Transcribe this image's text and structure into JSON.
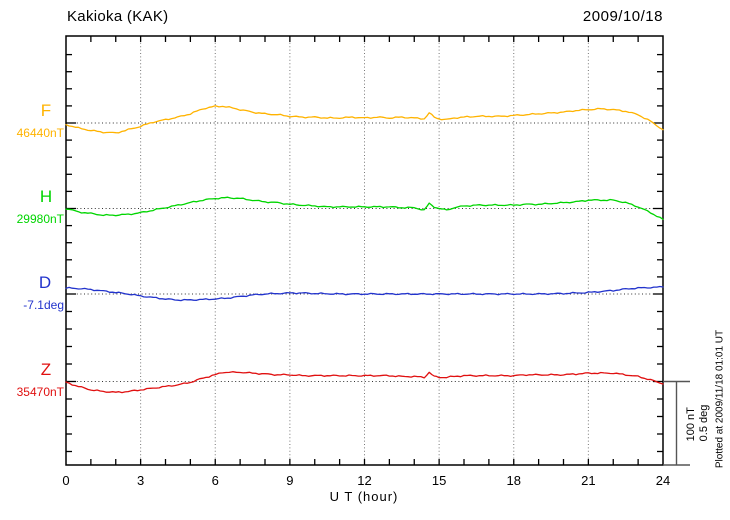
{
  "chart_data": {
    "type": "line",
    "title": "Kakioka (KAK)",
    "date": "2009/10/18",
    "xlabel": "U T (hour)",
    "x_ticks": [
      0,
      3,
      6,
      9,
      12,
      15,
      18,
      21,
      24
    ],
    "x_range": [
      0,
      24
    ],
    "grid": {
      "vertical_dotted_every_hours": 3,
      "horizontal_dotted_baseline_per_series": true
    },
    "scale_bar": {
      "line1": "100 nT",
      "line2": "0.5 deg"
    },
    "plotted_at": "Plotted at 2009/11/18 01:01 UT",
    "series": [
      {
        "name": "F",
        "base_value_label": "46440nT",
        "unit": "nT",
        "color": "#FFB300",
        "points": [
          [
            0,
            -2
          ],
          [
            0.5,
            -6
          ],
          [
            1,
            -9
          ],
          [
            1.5,
            -11
          ],
          [
            2,
            -12
          ],
          [
            2.5,
            -8
          ],
          [
            3,
            -4
          ],
          [
            3.5,
            1
          ],
          [
            4,
            4
          ],
          [
            4.5,
            7
          ],
          [
            5,
            11
          ],
          [
            5.5,
            17
          ],
          [
            6,
            20
          ],
          [
            6.3,
            20
          ],
          [
            6.7,
            18
          ],
          [
            7,
            16
          ],
          [
            7.5,
            13
          ],
          [
            8,
            11
          ],
          [
            8.5,
            10
          ],
          [
            9,
            8
          ],
          [
            9.5,
            7
          ],
          [
            10,
            7
          ],
          [
            10.5,
            6
          ],
          [
            11,
            6
          ],
          [
            11.5,
            7
          ],
          [
            12,
            6
          ],
          [
            12.5,
            7
          ],
          [
            13,
            6
          ],
          [
            13.5,
            7
          ],
          [
            14,
            6
          ],
          [
            14.4,
            5
          ],
          [
            14.6,
            12
          ],
          [
            14.8,
            7
          ],
          [
            15,
            5
          ],
          [
            15.3,
            4
          ],
          [
            15.6,
            6
          ],
          [
            16,
            7
          ],
          [
            16.5,
            8
          ],
          [
            17,
            8
          ],
          [
            17.5,
            8
          ],
          [
            18,
            9
          ],
          [
            18.5,
            10
          ],
          [
            19,
            11
          ],
          [
            19.5,
            12
          ],
          [
            20,
            13
          ],
          [
            20.5,
            15
          ],
          [
            21,
            16
          ],
          [
            21.5,
            17
          ],
          [
            22,
            16
          ],
          [
            22.5,
            14
          ],
          [
            23,
            10
          ],
          [
            23.5,
            2
          ],
          [
            24,
            -8
          ]
        ]
      },
      {
        "name": "H",
        "base_value_label": "29980nT",
        "unit": "nT",
        "color": "#00D500",
        "points": [
          [
            0,
            0
          ],
          [
            0.5,
            -4
          ],
          [
            1,
            -6
          ],
          [
            1.5,
            -8
          ],
          [
            2,
            -8
          ],
          [
            2.5,
            -7
          ],
          [
            3,
            -5
          ],
          [
            3.5,
            -2
          ],
          [
            4,
            1
          ],
          [
            4.5,
            4
          ],
          [
            5,
            7
          ],
          [
            5.5,
            10
          ],
          [
            6,
            12
          ],
          [
            6.5,
            13
          ],
          [
            7,
            12
          ],
          [
            7.5,
            10
          ],
          [
            8,
            8
          ],
          [
            8.5,
            7
          ],
          [
            9,
            5
          ],
          [
            9.5,
            4
          ],
          [
            10,
            3
          ],
          [
            10.5,
            2
          ],
          [
            11,
            2
          ],
          [
            11.5,
            2
          ],
          [
            12,
            2
          ],
          [
            12.5,
            2
          ],
          [
            13,
            2
          ],
          [
            13.5,
            1
          ],
          [
            14,
            1
          ],
          [
            14.4,
            -2
          ],
          [
            14.6,
            6
          ],
          [
            14.8,
            2
          ],
          [
            15,
            0
          ],
          [
            15.3,
            -2
          ],
          [
            15.6,
            1
          ],
          [
            16,
            3
          ],
          [
            16.5,
            4
          ],
          [
            17,
            4
          ],
          [
            17.5,
            4
          ],
          [
            18,
            4
          ],
          [
            18.5,
            5
          ],
          [
            19,
            5
          ],
          [
            19.5,
            6
          ],
          [
            20,
            7
          ],
          [
            20.5,
            8
          ],
          [
            21,
            10
          ],
          [
            21.5,
            10
          ],
          [
            22,
            10
          ],
          [
            22.5,
            7
          ],
          [
            23,
            2
          ],
          [
            23.5,
            -5
          ],
          [
            24,
            -13
          ]
        ]
      },
      {
        "name": "D",
        "base_value_label": "-7.1deg",
        "unit": "deg",
        "color": "#2233CC",
        "points": [
          [
            0,
            0.036
          ],
          [
            0.5,
            0.033
          ],
          [
            1,
            0.027
          ],
          [
            1.5,
            0.018
          ],
          [
            2,
            0.009
          ],
          [
            2.5,
            0
          ],
          [
            3,
            -0.012
          ],
          [
            3.5,
            -0.021
          ],
          [
            4,
            -0.03
          ],
          [
            4.5,
            -0.036
          ],
          [
            5,
            -0.036
          ],
          [
            5.5,
            -0.033
          ],
          [
            6,
            -0.03
          ],
          [
            6.5,
            -0.024
          ],
          [
            7,
            -0.015
          ],
          [
            7.5,
            -0.006
          ],
          [
            8,
            0
          ],
          [
            8.5,
            0.003
          ],
          [
            9,
            0.006
          ],
          [
            9.5,
            0.006
          ],
          [
            10,
            0.003
          ],
          [
            11,
            0
          ],
          [
            12,
            0
          ],
          [
            13,
            0
          ],
          [
            14,
            0
          ],
          [
            15,
            0
          ],
          [
            16,
            0
          ],
          [
            17,
            0
          ],
          [
            18,
            0
          ],
          [
            19,
            0
          ],
          [
            20,
            0.003
          ],
          [
            20.5,
            0.006
          ],
          [
            21,
            0.009
          ],
          [
            21.5,
            0.015
          ],
          [
            22,
            0.021
          ],
          [
            22.5,
            0.03
          ],
          [
            23,
            0.036
          ],
          [
            23.5,
            0.039
          ],
          [
            24,
            0.042
          ]
        ]
      },
      {
        "name": "Z",
        "base_value_label": "35470nT",
        "unit": "nT",
        "color": "#E01010",
        "points": [
          [
            0,
            -1
          ],
          [
            0.5,
            -6
          ],
          [
            1,
            -10
          ],
          [
            1.5,
            -12
          ],
          [
            2,
            -13
          ],
          [
            2.5,
            -12
          ],
          [
            3,
            -10
          ],
          [
            3.5,
            -8
          ],
          [
            4,
            -6
          ],
          [
            4.5,
            -4
          ],
          [
            5,
            -1
          ],
          [
            5.5,
            4
          ],
          [
            6,
            8
          ],
          [
            6.3,
            11
          ],
          [
            6.7,
            11
          ],
          [
            7,
            11
          ],
          [
            7.5,
            10
          ],
          [
            8,
            9
          ],
          [
            8.5,
            8
          ],
          [
            9,
            8
          ],
          [
            9.5,
            7
          ],
          [
            10,
            7
          ],
          [
            10.5,
            7
          ],
          [
            11,
            7
          ],
          [
            11.5,
            7
          ],
          [
            12,
            7
          ],
          [
            12.5,
            7
          ],
          [
            13,
            7
          ],
          [
            13.5,
            6
          ],
          [
            14,
            6
          ],
          [
            14.4,
            5
          ],
          [
            14.6,
            11
          ],
          [
            14.8,
            6
          ],
          [
            15,
            5
          ],
          [
            15.3,
            5
          ],
          [
            15.6,
            6
          ],
          [
            16,
            7
          ],
          [
            16.5,
            7
          ],
          [
            17,
            7
          ],
          [
            17.5,
            7
          ],
          [
            18,
            7
          ],
          [
            18.5,
            8
          ],
          [
            19,
            8
          ],
          [
            19.5,
            8
          ],
          [
            20,
            8
          ],
          [
            20.5,
            9
          ],
          [
            21,
            10
          ],
          [
            21.5,
            10
          ],
          [
            22,
            10
          ],
          [
            22.5,
            8
          ],
          [
            23,
            6
          ],
          [
            23.5,
            2
          ],
          [
            24,
            -3
          ]
        ]
      }
    ]
  }
}
